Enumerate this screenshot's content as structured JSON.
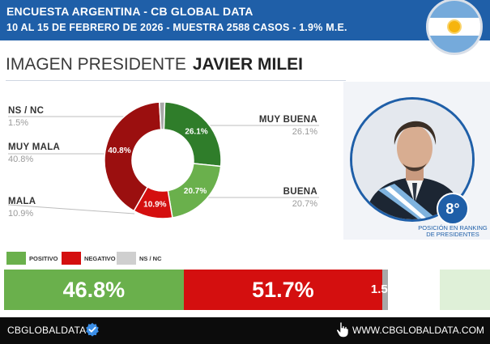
{
  "header": {
    "line1": "ENCUESTA ARGENTINA - CB GLOBAL DATA",
    "line2": "10 AL 15 DE FEBRERO DE 2026 - MUESTRA 2588 CASOS - 1.9% M.E."
  },
  "title": {
    "prefix": "IMAGEN PRESIDENTE",
    "name": "JAVIER MILEI"
  },
  "ranking": {
    "position": "8°",
    "caption_line1": "POSICIÓN EN RANKING",
    "caption_line2": "DE PRESIDENTES"
  },
  "labels": {
    "ns_nc": {
      "name": "NS / NC",
      "value": "1.5%"
    },
    "muy_mala": {
      "name": "MUY MALA",
      "value": "40.8%"
    },
    "mala": {
      "name": "MALA",
      "value": "10.9%"
    },
    "muy_buena": {
      "name": "MUY BUENA",
      "value": "26.1%"
    },
    "buena": {
      "name": "BUENA",
      "value": "20.7%"
    }
  },
  "chart_data": [
    {
      "type": "pie",
      "donut": true,
      "slices": [
        {
          "name": "MUY BUENA",
          "value": 26.1,
          "label": "26.1%",
          "color": "#2f7d2a"
        },
        {
          "name": "BUENA",
          "value": 20.7,
          "label": "20.7%",
          "color": "#6ab04c"
        },
        {
          "name": "MALA",
          "value": 10.9,
          "label": "10.9%",
          "color": "#d40f0f"
        },
        {
          "name": "MUY MALA",
          "value": 40.8,
          "label": "40.8%",
          "color": "#9b0f0f"
        },
        {
          "name": "NS / NC",
          "value": 1.5,
          "label": "",
          "color": "#a8a8a8"
        }
      ]
    },
    {
      "type": "bar",
      "orientation": "horizontal-stacked",
      "segments": [
        {
          "name": "POSITIVO",
          "value": 46.8,
          "label": "46.8%",
          "color": "#6ab04c"
        },
        {
          "name": "NEGATIVO",
          "value": 51.7,
          "label": "51.7%",
          "color": "#d40f0f"
        },
        {
          "name": "NS / NC",
          "value": 1.5,
          "label": "1.5",
          "color": "#a8a8a8"
        }
      ]
    }
  ],
  "legend": [
    {
      "name": "POSITIVO",
      "color": "#6ab04c"
    },
    {
      "name": "NEGATIVO",
      "color": "#d40f0f"
    },
    {
      "name": "NS / NC",
      "color": "#cfcfcf"
    }
  ],
  "footer": {
    "brand": "CBGLOBALDATA",
    "website": "WWW.CBGLOBALDATA.COM"
  },
  "icons": {
    "verified": "verified-check-icon",
    "cursor": "hand-cursor-icon",
    "flag": "argentina-flag-icon"
  }
}
